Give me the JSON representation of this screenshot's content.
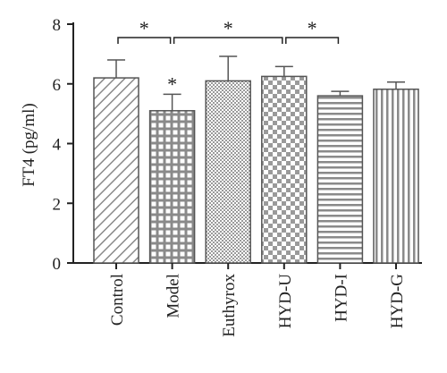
{
  "chart_data": {
    "type": "bar",
    "ylabel": "FT4 (pg/ml)",
    "xlabel": "",
    "ylim": [
      0,
      8
    ],
    "yticks": [
      0,
      2,
      4,
      6,
      8
    ],
    "grid": false,
    "categories": [
      "Control",
      "Model",
      "Euthyrox",
      "HYD-U",
      "HYD-I",
      "HYD-G"
    ],
    "values": [
      6.2,
      5.1,
      6.1,
      6.25,
      5.6,
      5.82
    ],
    "error": [
      0.6,
      0.55,
      0.82,
      0.33,
      0.15,
      0.24
    ],
    "patterns": [
      "diagonal-hatch",
      "grid",
      "dense-dots",
      "checker",
      "horizontal-lines",
      "vertical-lines"
    ],
    "bar_marks": [
      {
        "category": "Model",
        "text": "*"
      }
    ],
    "comparisons": [
      {
        "from": "Control",
        "to": "Model",
        "text": "*"
      },
      {
        "from": "Model",
        "to": "HYD-U",
        "text": "*"
      },
      {
        "from": "HYD-U",
        "to": "HYD-I",
        "text": "*"
      }
    ]
  },
  "colors": {
    "axis": "#222222",
    "bar_stroke": "#555555",
    "pattern": "#8a8a8a"
  }
}
